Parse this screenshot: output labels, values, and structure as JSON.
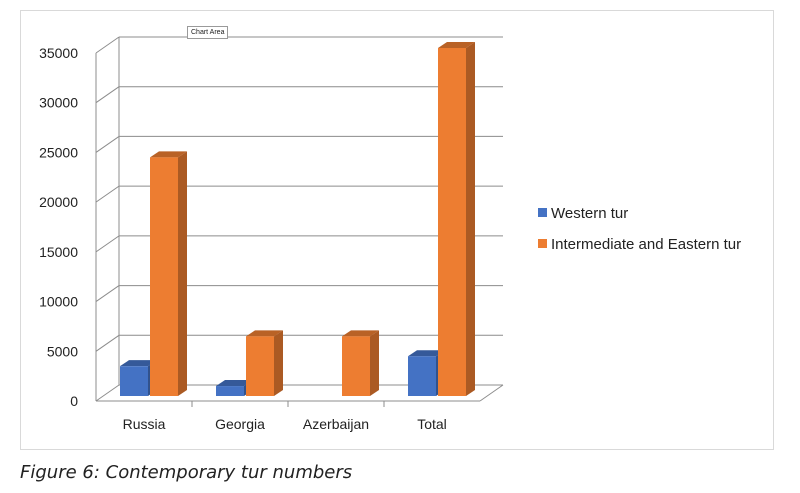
{
  "tooltip": "Chart Area",
  "caption": "Figure 6: Contemporary tur numbers",
  "chart_data": {
    "type": "bar",
    "categories": [
      "Russia",
      "Georgia",
      "Azerbaijan",
      "Total"
    ],
    "series": [
      {
        "name": "Western tur",
        "values": [
          3000,
          1000,
          0,
          4000
        ],
        "color": "#4472c4"
      },
      {
        "name": "Intermediate and Eastern tur",
        "values": [
          24000,
          6000,
          6000,
          35000
        ],
        "color": "#ed7d31"
      }
    ],
    "yticks": [
      0,
      5000,
      10000,
      15000,
      20000,
      25000,
      30000,
      35000
    ],
    "ylim": [
      0,
      35000
    ],
    "grid": true,
    "legend": "right",
    "3d": true
  }
}
